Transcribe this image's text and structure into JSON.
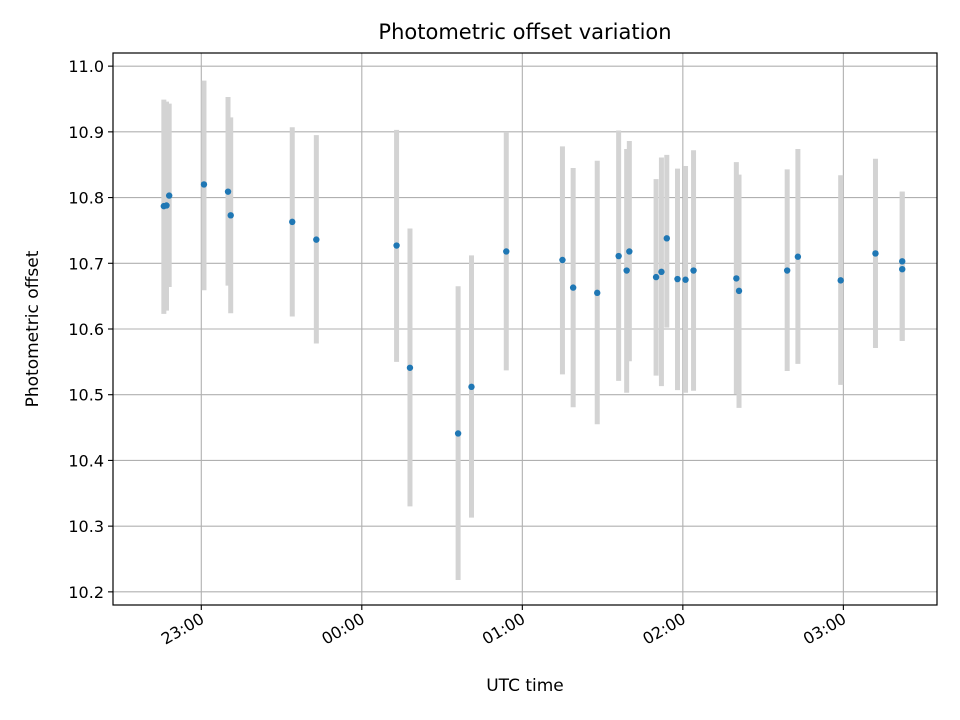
{
  "chart_data": {
    "type": "scatter",
    "title": "Photometric offset variation",
    "xlabel": "UTC time",
    "ylabel": "Photometric offset",
    "ylim": [
      10.18,
      11.02
    ],
    "xlim": [
      "22:27",
      "03:35"
    ],
    "grid": true,
    "yticks": [
      10.2,
      10.3,
      10.4,
      10.5,
      10.6,
      10.7,
      10.8,
      10.9,
      11.0
    ],
    "ytick_labels": [
      "10.2",
      "10.3",
      "10.4",
      "10.5",
      "10.6",
      "10.7",
      "10.8",
      "10.9",
      "11.0"
    ],
    "xticks": [
      "23:00",
      "00:00",
      "01:00",
      "02:00",
      "03:00"
    ],
    "xtick_labels": [
      "23:00",
      "00:00",
      "01:00",
      "02:00",
      "03:00"
    ],
    "point_color": "#1f77b4",
    "errorbar_color": "#d3d3d3",
    "points": [
      {
        "x": "22:46",
        "y": 10.787,
        "lo": 10.623,
        "hi": 10.949
      },
      {
        "x": "22:47",
        "y": 10.788,
        "lo": 10.628,
        "hi": 10.946
      },
      {
        "x": "22:48",
        "y": 10.803,
        "lo": 10.664,
        "hi": 10.943
      },
      {
        "x": "23:01",
        "y": 10.82,
        "lo": 10.659,
        "hi": 10.978
      },
      {
        "x": "23:10",
        "y": 10.809,
        "lo": 10.666,
        "hi": 10.953
      },
      {
        "x": "23:11",
        "y": 10.773,
        "lo": 10.624,
        "hi": 10.922
      },
      {
        "x": "23:34",
        "y": 10.763,
        "lo": 10.619,
        "hi": 10.907
      },
      {
        "x": "23:43",
        "y": 10.736,
        "lo": 10.578,
        "hi": 10.895
      },
      {
        "x": "00:13",
        "y": 10.727,
        "lo": 10.55,
        "hi": 10.903
      },
      {
        "x": "00:18",
        "y": 10.541,
        "lo": 10.33,
        "hi": 10.753
      },
      {
        "x": "00:36",
        "y": 10.441,
        "lo": 10.218,
        "hi": 10.665
      },
      {
        "x": "00:41",
        "y": 10.512,
        "lo": 10.313,
        "hi": 10.712
      },
      {
        "x": "00:54",
        "y": 10.718,
        "lo": 10.537,
        "hi": 10.9
      },
      {
        "x": "01:15",
        "y": 10.705,
        "lo": 10.531,
        "hi": 10.878
      },
      {
        "x": "01:19",
        "y": 10.663,
        "lo": 10.481,
        "hi": 10.845
      },
      {
        "x": "01:28",
        "y": 10.655,
        "lo": 10.455,
        "hi": 10.856
      },
      {
        "x": "01:36",
        "y": 10.711,
        "lo": 10.521,
        "hi": 10.902
      },
      {
        "x": "01:39",
        "y": 10.689,
        "lo": 10.503,
        "hi": 10.874
      },
      {
        "x": "01:40",
        "y": 10.718,
        "lo": 10.551,
        "hi": 10.886
      },
      {
        "x": "01:50",
        "y": 10.679,
        "lo": 10.529,
        "hi": 10.828
      },
      {
        "x": "01:52",
        "y": 10.687,
        "lo": 10.513,
        "hi": 10.861
      },
      {
        "x": "01:54",
        "y": 10.738,
        "lo": 10.602,
        "hi": 10.865
      },
      {
        "x": "01:58",
        "y": 10.676,
        "lo": 10.507,
        "hi": 10.844
      },
      {
        "x": "02:01",
        "y": 10.675,
        "lo": 10.503,
        "hi": 10.848
      },
      {
        "x": "02:04",
        "y": 10.689,
        "lo": 10.506,
        "hi": 10.872
      },
      {
        "x": "02:20",
        "y": 10.677,
        "lo": 10.501,
        "hi": 10.854
      },
      {
        "x": "02:21",
        "y": 10.658,
        "lo": 10.48,
        "hi": 10.835
      },
      {
        "x": "02:39",
        "y": 10.689,
        "lo": 10.536,
        "hi": 10.843
      },
      {
        "x": "02:43",
        "y": 10.71,
        "lo": 10.547,
        "hi": 10.874
      },
      {
        "x": "02:59",
        "y": 10.674,
        "lo": 10.515,
        "hi": 10.834
      },
      {
        "x": "03:12",
        "y": 10.715,
        "lo": 10.571,
        "hi": 10.859
      },
      {
        "x": "03:22",
        "y": 10.703,
        "lo": 10.582,
        "hi": 10.809
      },
      {
        "x": "03:22",
        "y": 10.691,
        "lo": 10.582,
        "hi": 10.809
      }
    ]
  }
}
